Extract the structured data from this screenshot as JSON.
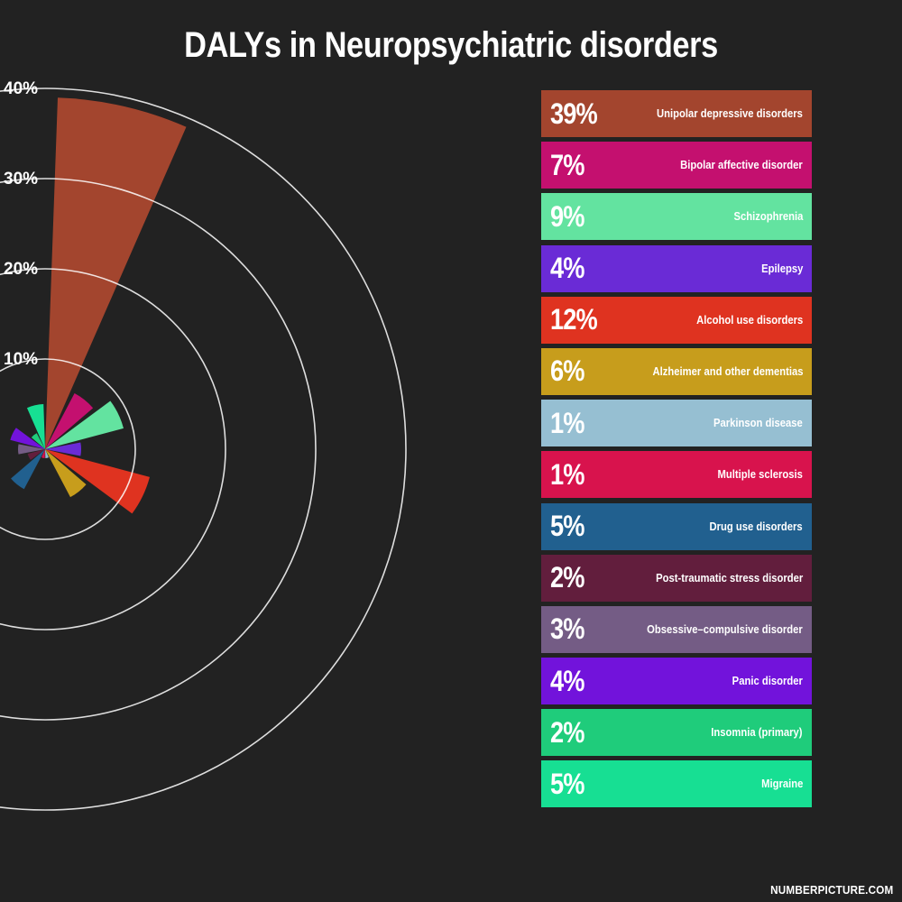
{
  "title": "DALYs in Neuropsychiatric disorders",
  "footer": "NUMBERPICTURE.COM",
  "chart_data": {
    "type": "polar-bar",
    "title": "DALYs in Neuropsychiatric disorders",
    "rlim": [
      0,
      40
    ],
    "ticks": [
      "10%",
      "20%",
      "30%",
      "40%"
    ],
    "tick_values": [
      10,
      20,
      30,
      40
    ],
    "categories": [
      "Unipolar depressive disorders",
      "Bipolar affective disorder",
      "Schizophrenia",
      "Epilepsy",
      "Alcohol use disorders",
      "Alzheimer and other dementias",
      "Parkinson disease",
      "Multiple sclerosis",
      "Drug use disorders",
      "Post-traumatic stress disorder",
      "Obsessive–compulsive disorder",
      "Panic disorder",
      "Insomnia (primary)",
      "Migraine"
    ],
    "values": [
      39,
      7,
      9,
      4,
      12,
      6,
      1,
      1,
      5,
      2,
      3,
      4,
      2,
      5
    ],
    "labels": [
      "39%",
      "7%",
      "9%",
      "4%",
      "12%",
      "6%",
      "1%",
      "1%",
      "5%",
      "2%",
      "3%",
      "4%",
      "2%",
      "5%"
    ],
    "colors": [
      "#a3452e",
      "#c4106f",
      "#63e3a0",
      "#6a2bd6",
      "#df3320",
      "#c79d1c",
      "#96bfd2",
      "#d8134d",
      "#21608f",
      "#621e3d",
      "#745c85",
      "#7213db",
      "#1fcc7b",
      "#17df93"
    ]
  }
}
